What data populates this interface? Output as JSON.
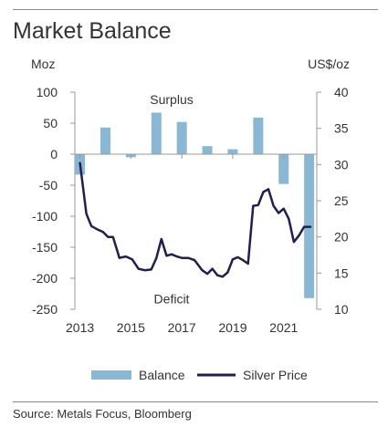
{
  "chart_data": {
    "type": "bar+line",
    "title": "Market Balance",
    "left_axis_unit": "Moz",
    "right_axis_unit": "US$/oz",
    "y_left_ticks": [
      "100",
      "50",
      "0",
      "-50",
      "-100",
      "-150",
      "-200",
      "-250"
    ],
    "y_left_range": [
      -250,
      100
    ],
    "y_right_ticks": [
      "40",
      "35",
      "30",
      "25",
      "20",
      "15",
      "10"
    ],
    "y_right_range": [
      10,
      40
    ],
    "x_tick_labels": [
      "2013",
      "2015",
      "2017",
      "2019",
      "2021"
    ],
    "x_tick_values": [
      2013,
      2015,
      2017,
      2019,
      2021
    ],
    "x_range": [
      2012.8,
      2022.3
    ],
    "annotations": [
      {
        "text": "Surplus",
        "x": 2016.6,
        "y": 88,
        "axis": "left"
      },
      {
        "text": "Deficit",
        "x": 2016.6,
        "y": -233,
        "axis": "left"
      }
    ],
    "series": [
      {
        "name": "Balance",
        "kind": "bar",
        "axis": "left",
        "color": "#8ab8d4",
        "points": [
          {
            "x": 2013,
            "y": -33
          },
          {
            "x": 2014,
            "y": 43
          },
          {
            "x": 2015,
            "y": -5
          },
          {
            "x": 2016,
            "y": 67
          },
          {
            "x": 2017,
            "y": 52
          },
          {
            "x": 2018,
            "y": 13
          },
          {
            "x": 2019,
            "y": 8
          },
          {
            "x": 2020,
            "y": 59
          },
          {
            "x": 2021,
            "y": -48
          },
          {
            "x": 2022,
            "y": -232
          }
        ]
      },
      {
        "name": "Silver Price",
        "kind": "line",
        "axis": "right",
        "color": "#1f1f50",
        "x": [
          2013.0,
          2013.25,
          2013.45,
          2013.7,
          2013.9,
          2014.1,
          2014.3,
          2014.55,
          2014.8,
          2015.05,
          2015.3,
          2015.55,
          2015.8,
          2016.0,
          2016.2,
          2016.4,
          2016.6,
          2016.8,
          2017.0,
          2017.25,
          2017.5,
          2017.8,
          2018.0,
          2018.2,
          2018.4,
          2018.6,
          2018.8,
          2019.0,
          2019.2,
          2019.4,
          2019.6,
          2019.8,
          2020.0,
          2020.2,
          2020.4,
          2020.6,
          2020.8,
          2021.0,
          2021.2,
          2021.4,
          2021.6,
          2021.8,
          2022.05
        ],
        "y": [
          30.2,
          23.2,
          21.5,
          21.0,
          20.7,
          20.0,
          20.0,
          17.1,
          17.3,
          16.9,
          15.6,
          15.4,
          15.5,
          17.1,
          19.7,
          17.4,
          17.6,
          17.3,
          17.1,
          17.1,
          16.8,
          15.4,
          14.9,
          15.6,
          14.7,
          14.5,
          15.1,
          16.9,
          17.2,
          16.8,
          16.3,
          24.3,
          24.4,
          26.2,
          26.6,
          24.3,
          23.3,
          23.9,
          22.5,
          19.3,
          20.2,
          21.4,
          21.4
        ]
      }
    ],
    "legend": {
      "placement": "bottom",
      "items": [
        "Balance",
        "Silver Price"
      ]
    }
  },
  "source": "Source: Metals Focus, Bloomberg"
}
